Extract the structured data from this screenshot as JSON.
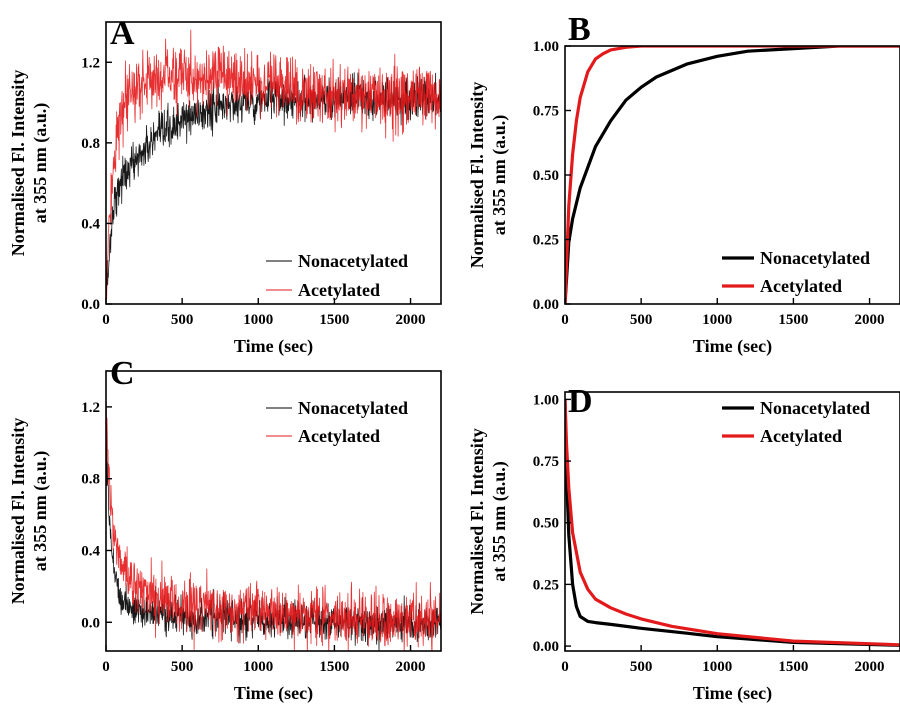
{
  "colors": {
    "nonacetylated": "#000000",
    "acetylated": "#e31a1c"
  },
  "chart_data": [
    {
      "panel": "A",
      "type": "line",
      "noisy": true,
      "xlabel": "Time (sec)",
      "ylabel": [
        "Normalised Fl. Intensity",
        "at 355 nm (a.u.)"
      ],
      "xlim": [
        0,
        2200
      ],
      "ylim": [
        0,
        1.4
      ],
      "xticks": [
        0,
        500,
        1000,
        1500,
        2000
      ],
      "yticks": [
        0.0,
        0.4,
        0.8,
        1.2
      ],
      "ytick_labels": [
        "0.0",
        "0.4",
        "0.8",
        "1.2"
      ],
      "legend": "bottom-right",
      "series": [
        {
          "name": "Nonacetylated",
          "color": "#000000",
          "x": [
            0,
            50,
            100,
            200,
            300,
            400,
            500,
            600,
            700,
            800,
            1000,
            1200,
            1500,
            1800,
            2200
          ],
          "y": [
            0.05,
            0.5,
            0.62,
            0.72,
            0.8,
            0.86,
            0.91,
            0.94,
            0.97,
            0.99,
            1.01,
            1.02,
            1.02,
            1.02,
            1.02
          ]
        },
        {
          "name": "Acetylated",
          "color": "#e31a1c",
          "x": [
            0,
            50,
            100,
            150,
            200,
            300,
            400,
            500,
            700,
            900,
            1100,
            1300,
            1500,
            1800,
            2200
          ],
          "y": [
            0.05,
            0.75,
            0.92,
            1.02,
            1.08,
            1.12,
            1.14,
            1.14,
            1.13,
            1.11,
            1.08,
            1.06,
            1.04,
            1.03,
            1.02
          ]
        }
      ]
    },
    {
      "panel": "B",
      "type": "line",
      "noisy": false,
      "xlabel": "Time (sec)",
      "ylabel": [
        "Normalised Fl. Intensity",
        "at 355 nm (a.u.)"
      ],
      "xlim": [
        0,
        2200
      ],
      "ylim": [
        0,
        1.0
      ],
      "xticks": [
        0,
        500,
        1000,
        1500,
        2000
      ],
      "yticks": [
        0.0,
        0.25,
        0.5,
        0.75,
        1.0
      ],
      "ytick_labels": [
        "0.00",
        "0.25",
        "0.50",
        "0.75",
        "1.00"
      ],
      "legend": "bottom-right",
      "series": [
        {
          "name": "Nonacetylated",
          "color": "#000000",
          "x": [
            0,
            25,
            50,
            100,
            200,
            300,
            400,
            500,
            600,
            800,
            1000,
            1200,
            1500,
            1800,
            2200
          ],
          "y": [
            0.0,
            0.24,
            0.33,
            0.45,
            0.61,
            0.71,
            0.79,
            0.84,
            0.88,
            0.93,
            0.96,
            0.98,
            0.99,
            1.0,
            1.0
          ]
        },
        {
          "name": "Acetylated",
          "color": "#e31a1c",
          "x": [
            0,
            25,
            50,
            75,
            100,
            150,
            200,
            250,
            300,
            400,
            500,
            700,
            1000,
            2200
          ],
          "y": [
            0.0,
            0.38,
            0.58,
            0.71,
            0.8,
            0.9,
            0.95,
            0.97,
            0.985,
            0.995,
            1.0,
            1.0,
            1.0,
            1.0
          ]
        }
      ]
    },
    {
      "panel": "C",
      "type": "line",
      "noisy": true,
      "xlabel": "Time (sec)",
      "ylabel": [
        "Normalised Fl. Intensity",
        "at 355 nm (a.u.)"
      ],
      "xlim": [
        0,
        2200
      ],
      "ylim": [
        -0.16,
        1.4
      ],
      "xticks": [
        0,
        500,
        1000,
        1500,
        2000
      ],
      "yticks": [
        0.0,
        0.4,
        0.8,
        1.2
      ],
      "ytick_labels": [
        "0.0",
        "0.4",
        "0.8",
        "1.2"
      ],
      "legend": "top-right",
      "series": [
        {
          "name": "Nonacetylated",
          "color": "#000000",
          "x": [
            0,
            20,
            50,
            75,
            100,
            150,
            200,
            300,
            400,
            600,
            1000,
            1500,
            2200
          ],
          "y": [
            1.1,
            0.6,
            0.32,
            0.2,
            0.14,
            0.09,
            0.07,
            0.05,
            0.04,
            0.03,
            0.02,
            0.0,
            -0.01
          ]
        },
        {
          "name": "Acetylated",
          "color": "#e31a1c",
          "x": [
            0,
            20,
            50,
            100,
            150,
            200,
            300,
            400,
            500,
            700,
            1000,
            1500,
            2200
          ],
          "y": [
            1.2,
            0.72,
            0.5,
            0.33,
            0.25,
            0.2,
            0.15,
            0.12,
            0.1,
            0.08,
            0.06,
            0.03,
            0.0
          ]
        }
      ]
    },
    {
      "panel": "D",
      "type": "line",
      "noisy": false,
      "xlabel": "Time (sec)",
      "ylabel": [
        "Normalised Fl. Intensity",
        "at 355 nm (a.u.)"
      ],
      "xlim": [
        0,
        2200
      ],
      "ylim": [
        -0.02,
        1.03
      ],
      "xticks": [
        0,
        500,
        1000,
        1500,
        2000
      ],
      "yticks": [
        0.0,
        0.25,
        0.5,
        0.75,
        1.0
      ],
      "ytick_labels": [
        "0.00",
        "0.25",
        "0.50",
        "0.75",
        "1.00"
      ],
      "legend": "top-right",
      "series": [
        {
          "name": "Nonacetylated",
          "color": "#000000",
          "x": [
            0,
            10,
            25,
            50,
            75,
            100,
            150,
            200,
            300,
            500,
            800,
            1000,
            1500,
            2200
          ],
          "y": [
            1.0,
            0.7,
            0.45,
            0.25,
            0.16,
            0.12,
            0.1,
            0.095,
            0.088,
            0.072,
            0.052,
            0.038,
            0.015,
            0.003
          ]
        },
        {
          "name": "Acetylated",
          "color": "#e31a1c",
          "x": [
            0,
            10,
            25,
            50,
            100,
            150,
            200,
            300,
            400,
            500,
            700,
            1000,
            1500,
            2200
          ],
          "y": [
            1.0,
            0.82,
            0.64,
            0.46,
            0.3,
            0.23,
            0.19,
            0.155,
            0.13,
            0.11,
            0.08,
            0.05,
            0.02,
            0.005
          ]
        }
      ]
    }
  ]
}
